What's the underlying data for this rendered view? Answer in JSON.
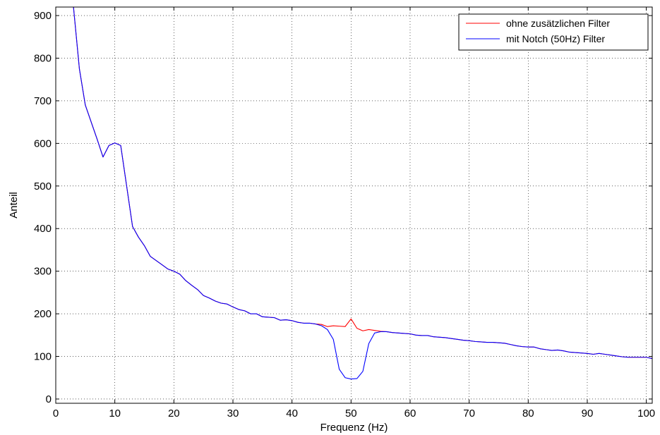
{
  "chart_data": {
    "type": "line",
    "title": "",
    "xlabel": "Frequenz (Hz)",
    "ylabel": "Anteil",
    "xlim": [
      0,
      101
    ],
    "ylim": [
      -10,
      920
    ],
    "xticks": [
      0,
      10,
      20,
      30,
      40,
      50,
      60,
      70,
      80,
      90,
      100
    ],
    "yticks": [
      0,
      100,
      200,
      300,
      400,
      500,
      600,
      700,
      800,
      900
    ],
    "grid": true,
    "legend_position": "top-right",
    "series": [
      {
        "name": "ohne zusätzlichen Filter",
        "color": "#ff0000",
        "x": [
          3,
          4,
          5,
          6,
          7,
          8,
          9,
          10,
          11,
          12,
          13,
          14,
          15,
          16,
          17,
          18,
          19,
          20,
          21,
          22,
          23,
          24,
          25,
          26,
          27,
          28,
          29,
          30,
          31,
          32,
          33,
          34,
          35,
          36,
          37,
          38,
          39,
          40,
          41,
          42,
          43,
          44,
          45,
          46,
          47,
          48,
          49,
          50,
          51,
          52,
          53,
          54,
          55,
          56,
          57,
          58,
          59,
          60,
          61,
          62,
          63,
          64,
          65,
          66,
          67,
          68,
          69,
          70,
          71,
          72,
          73,
          74,
          75,
          76,
          77,
          78,
          79,
          80,
          81,
          82,
          83,
          84,
          85,
          86,
          87,
          88,
          89,
          90,
          91,
          92,
          93,
          94,
          95,
          96,
          97,
          98,
          99,
          100,
          101
        ],
        "y": [
          920,
          775,
          690,
          650,
          610,
          568,
          595,
          601,
          595,
          500,
          405,
          380,
          360,
          335,
          325,
          315,
          305,
          300,
          293,
          278,
          267,
          257,
          243,
          237,
          230,
          225,
          223,
          216,
          210,
          207,
          200,
          200,
          193,
          192,
          191,
          185,
          186,
          184,
          180,
          178,
          178,
          176,
          175,
          170,
          172,
          171,
          170,
          188,
          166,
          160,
          163,
          161,
          159,
          158,
          156,
          155,
          154,
          153,
          150,
          149,
          149,
          146,
          145,
          144,
          142,
          140,
          138,
          137,
          135,
          134,
          133,
          133,
          132,
          131,
          128,
          125,
          123,
          122,
          122,
          118,
          116,
          114,
          115,
          113,
          110,
          109,
          108,
          107,
          105,
          107,
          105,
          103,
          101,
          99,
          98,
          98,
          98,
          98,
          95
        ],
        "note": ""
      },
      {
        "name": "mit Notch (50Hz) Filter",
        "color": "#0000ff",
        "x": [
          3,
          4,
          5,
          6,
          7,
          8,
          9,
          10,
          11,
          12,
          13,
          14,
          15,
          16,
          17,
          18,
          19,
          20,
          21,
          22,
          23,
          24,
          25,
          26,
          27,
          28,
          29,
          30,
          31,
          32,
          33,
          34,
          35,
          36,
          37,
          38,
          39,
          40,
          41,
          42,
          43,
          44,
          45,
          46,
          47,
          48,
          49,
          50,
          51,
          52,
          53,
          54,
          55,
          56,
          57,
          58,
          59,
          60,
          61,
          62,
          63,
          64,
          65,
          66,
          67,
          68,
          69,
          70,
          71,
          72,
          73,
          74,
          75,
          76,
          77,
          78,
          79,
          80,
          81,
          82,
          83,
          84,
          85,
          86,
          87,
          88,
          89,
          90,
          91,
          92,
          93,
          94,
          95,
          96,
          97,
          98,
          99,
          100,
          101
        ],
        "y": [
          920,
          775,
          690,
          650,
          610,
          568,
          595,
          601,
          595,
          500,
          405,
          380,
          360,
          335,
          325,
          315,
          305,
          300,
          293,
          278,
          267,
          257,
          243,
          237,
          230,
          225,
          223,
          216,
          210,
          207,
          200,
          200,
          193,
          192,
          191,
          185,
          186,
          184,
          180,
          178,
          178,
          176,
          172,
          163,
          140,
          70,
          50,
          47,
          48,
          65,
          130,
          155,
          158,
          158,
          156,
          155,
          154,
          153,
          150,
          149,
          149,
          146,
          145,
          144,
          142,
          140,
          138,
          137,
          135,
          134,
          133,
          133,
          132,
          131,
          128,
          125,
          123,
          122,
          122,
          118,
          116,
          114,
          115,
          113,
          110,
          109,
          108,
          107,
          105,
          107,
          105,
          103,
          101,
          99,
          98,
          98,
          98,
          98,
          95
        ]
      }
    ]
  }
}
